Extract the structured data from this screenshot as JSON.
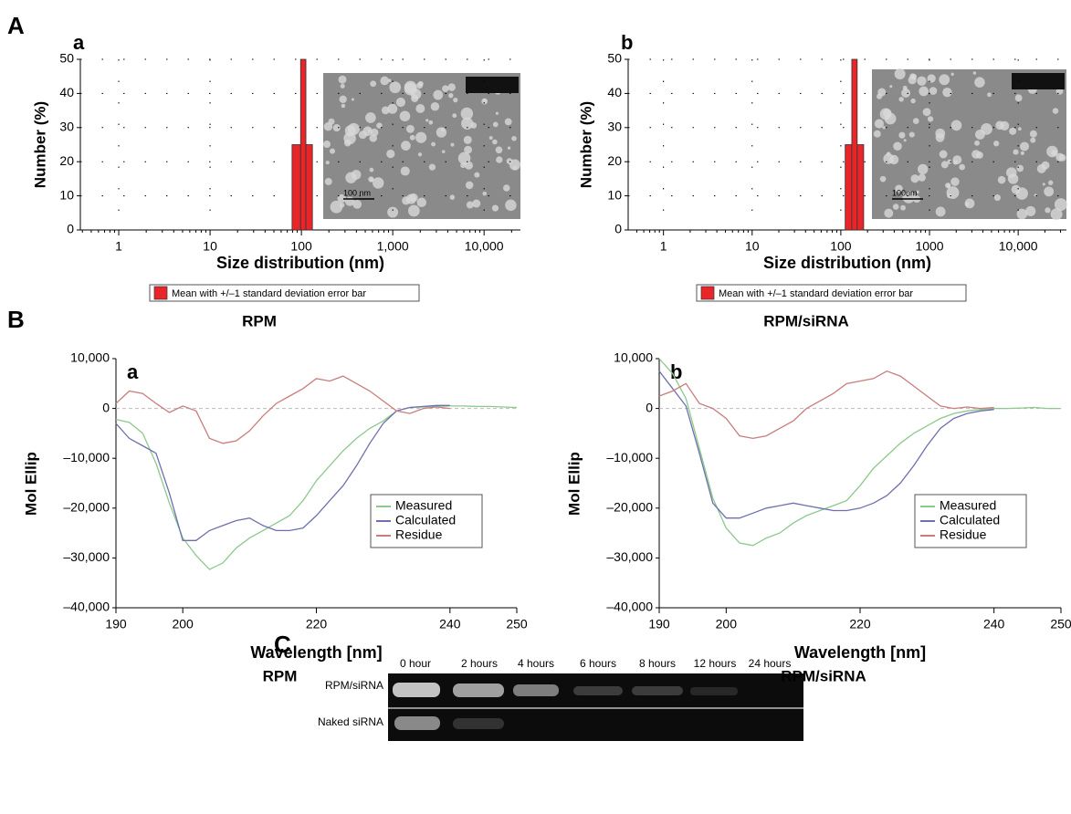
{
  "panel_labels": [
    "A",
    "B",
    "C"
  ],
  "chart_data": [
    {
      "type": "histogram",
      "title": "a",
      "caption": "RPM",
      "xlabel": "Size distribution (nm)",
      "ylabel": "Number (%)",
      "xlog": true,
      "xlim": [
        0.38,
        25000
      ],
      "xticks": [
        1,
        10,
        100,
        {
          "value": 1000,
          "label": "1,000"
        },
        {
          "value": 10000,
          "label": "10,000"
        }
      ],
      "ylim": [
        0,
        50
      ],
      "yticks": [
        0,
        10,
        20,
        30,
        40,
        50
      ],
      "grid": true,
      "legend": "below",
      "bins": [
        79,
        98,
        112,
        132
      ],
      "series": [
        {
          "name": "Mean with +/–1 standard  deviation error bar",
          "color": "#e8262a",
          "values": [
            25,
            50,
            25
          ]
        }
      ],
      "inset": {
        "scale_label": "100 nm"
      }
    },
    {
      "type": "histogram",
      "title": "b",
      "caption": "RPM/siRNA",
      "xlabel": "Size distribution (nm)",
      "ylabel": "Number (%)",
      "xlog": true,
      "xlim": [
        0.4,
        35000
      ],
      "xticks": [
        1,
        10,
        100,
        1000,
        {
          "value": 10000,
          "label": "10,000"
        }
      ],
      "ylim": [
        0,
        50
      ],
      "yticks": [
        0,
        10,
        20,
        30,
        40,
        50
      ],
      "grid": true,
      "legend": "below",
      "bins": [
        112,
        133,
        153,
        181
      ],
      "series": [
        {
          "name": "Mean with +/–1 standard  deviation error bar",
          "color": "#e8262a",
          "values": [
            25,
            50,
            25
          ]
        }
      ],
      "inset": {
        "scale_label": "100nm"
      }
    },
    {
      "type": "line",
      "title": "a",
      "caption": "RPM",
      "xlabel": "Wavelength [nm]",
      "ylabel": "Mol Ellip",
      "xlim": [
        190,
        250
      ],
      "xticks": [
        190,
        200,
        220,
        240,
        250
      ],
      "ylim": [
        -40000,
        10000
      ],
      "yticks": [
        {
          "value": -40000,
          "label": "–40,000"
        },
        {
          "value": -30000,
          "label": "–30,000"
        },
        {
          "value": -20000,
          "label": "–20,000"
        },
        {
          "value": -10000,
          "label": "–10,000"
        },
        0,
        {
          "value": 10000,
          "label": "10,000"
        }
      ],
      "zero_line": true,
      "legend": "lower right",
      "x": [
        190,
        192,
        194,
        196,
        198,
        200,
        202,
        204,
        206,
        208,
        210,
        212,
        214,
        216,
        218,
        220,
        222,
        224,
        226,
        228,
        230,
        232,
        234,
        236,
        238,
        240,
        242,
        244,
        246,
        248,
        250
      ],
      "series": [
        {
          "name": "Measured",
          "color": "#8cc98c",
          "values": [
            -2200,
            -2800,
            -5000,
            -11000,
            -19000,
            -26000,
            -29500,
            -32300,
            -31000,
            -28000,
            -26000,
            -24500,
            -23000,
            -21500,
            -18500,
            -14500,
            -11500,
            -8500,
            -6000,
            -4000,
            -2500,
            -500,
            200,
            300,
            400,
            500,
            500,
            400,
            400,
            300,
            200
          ]
        },
        {
          "name": "Calculated",
          "color": "#6f6fb0",
          "values": [
            -3000,
            -6000,
            -7500,
            -9000,
            -17000,
            -26500,
            -26500,
            -24500,
            -23500,
            -22500,
            -22000,
            -23500,
            -24500,
            -24500,
            -24000,
            -21500,
            -18500,
            -15500,
            -11500,
            -7000,
            -3000,
            -500,
            200,
            400,
            600,
            600,
            null,
            null,
            null,
            null,
            null
          ]
        },
        {
          "name": "Residue",
          "color": "#c97d7d",
          "values": [
            1000,
            3500,
            3000,
            1000,
            -800,
            500,
            -500,
            -6000,
            -7000,
            -6500,
            -4500,
            -1500,
            1000,
            2500,
            4000,
            6000,
            5500,
            6500,
            5000,
            3500,
            1500,
            -500,
            -1000,
            0,
            300,
            0,
            null,
            null,
            null,
            null,
            null
          ]
        }
      ]
    },
    {
      "type": "line",
      "title": "b",
      "caption": "RPM/siRNA",
      "xlabel": "Wavelength [nm]",
      "ylabel": "Mol Ellip",
      "xlim": [
        190,
        250
      ],
      "xticks": [
        190,
        200,
        220,
        240,
        250
      ],
      "ylim": [
        -40000,
        10000
      ],
      "yticks": [
        {
          "value": -40000,
          "label": "–40,000"
        },
        {
          "value": -30000,
          "label": "–30,000"
        },
        {
          "value": -20000,
          "label": "–20,000"
        },
        {
          "value": -10000,
          "label": "–10,000"
        },
        0,
        {
          "value": 10000,
          "label": "10,000"
        }
      ],
      "zero_line": true,
      "legend": "lower right",
      "x": [
        190,
        192,
        194,
        196,
        198,
        200,
        202,
        204,
        206,
        208,
        210,
        212,
        214,
        216,
        218,
        220,
        222,
        224,
        226,
        228,
        230,
        232,
        234,
        236,
        238,
        240,
        242,
        244,
        246,
        248,
        250
      ],
      "series": [
        {
          "name": "Measured",
          "color": "#8cc98c",
          "values": [
            10000,
            7000,
            2000,
            -8000,
            -18000,
            -24000,
            -27000,
            -27500,
            -26000,
            -25000,
            -23000,
            -21500,
            -20500,
            -19500,
            -18500,
            -15500,
            -12000,
            -9500,
            -7000,
            -5000,
            -3500,
            -2000,
            -1000,
            -500,
            -200,
            0,
            0,
            100,
            200,
            0,
            0
          ]
        },
        {
          "name": "Calculated",
          "color": "#6f6fb0",
          "values": [
            7500,
            4000,
            500,
            -9000,
            -19000,
            -22000,
            -22000,
            -21000,
            -20000,
            -19500,
            -19000,
            -19500,
            -20000,
            -20500,
            -20500,
            -20000,
            -19000,
            -17500,
            -15000,
            -11500,
            -7500,
            -4000,
            -2000,
            -1000,
            -500,
            -200,
            null,
            null,
            null,
            null,
            null
          ]
        },
        {
          "name": "Residue",
          "color": "#c97d7d",
          "values": [
            2500,
            3500,
            5000,
            1000,
            0,
            -2000,
            -5500,
            -6000,
            -5500,
            -4000,
            -2500,
            0,
            1500,
            3000,
            5000,
            5500,
            6000,
            7500,
            6500,
            4500,
            2500,
            500,
            0,
            300,
            0,
            200,
            null,
            null,
            null,
            null,
            null
          ]
        }
      ]
    }
  ],
  "gel": {
    "lanes": [
      "0 hour",
      "2 hours",
      "4 hours",
      "6 hours",
      "8 hours",
      "12 hours",
      "24 hours"
    ],
    "rows": [
      "RPM/siRNA",
      "Naked siRNA"
    ]
  }
}
